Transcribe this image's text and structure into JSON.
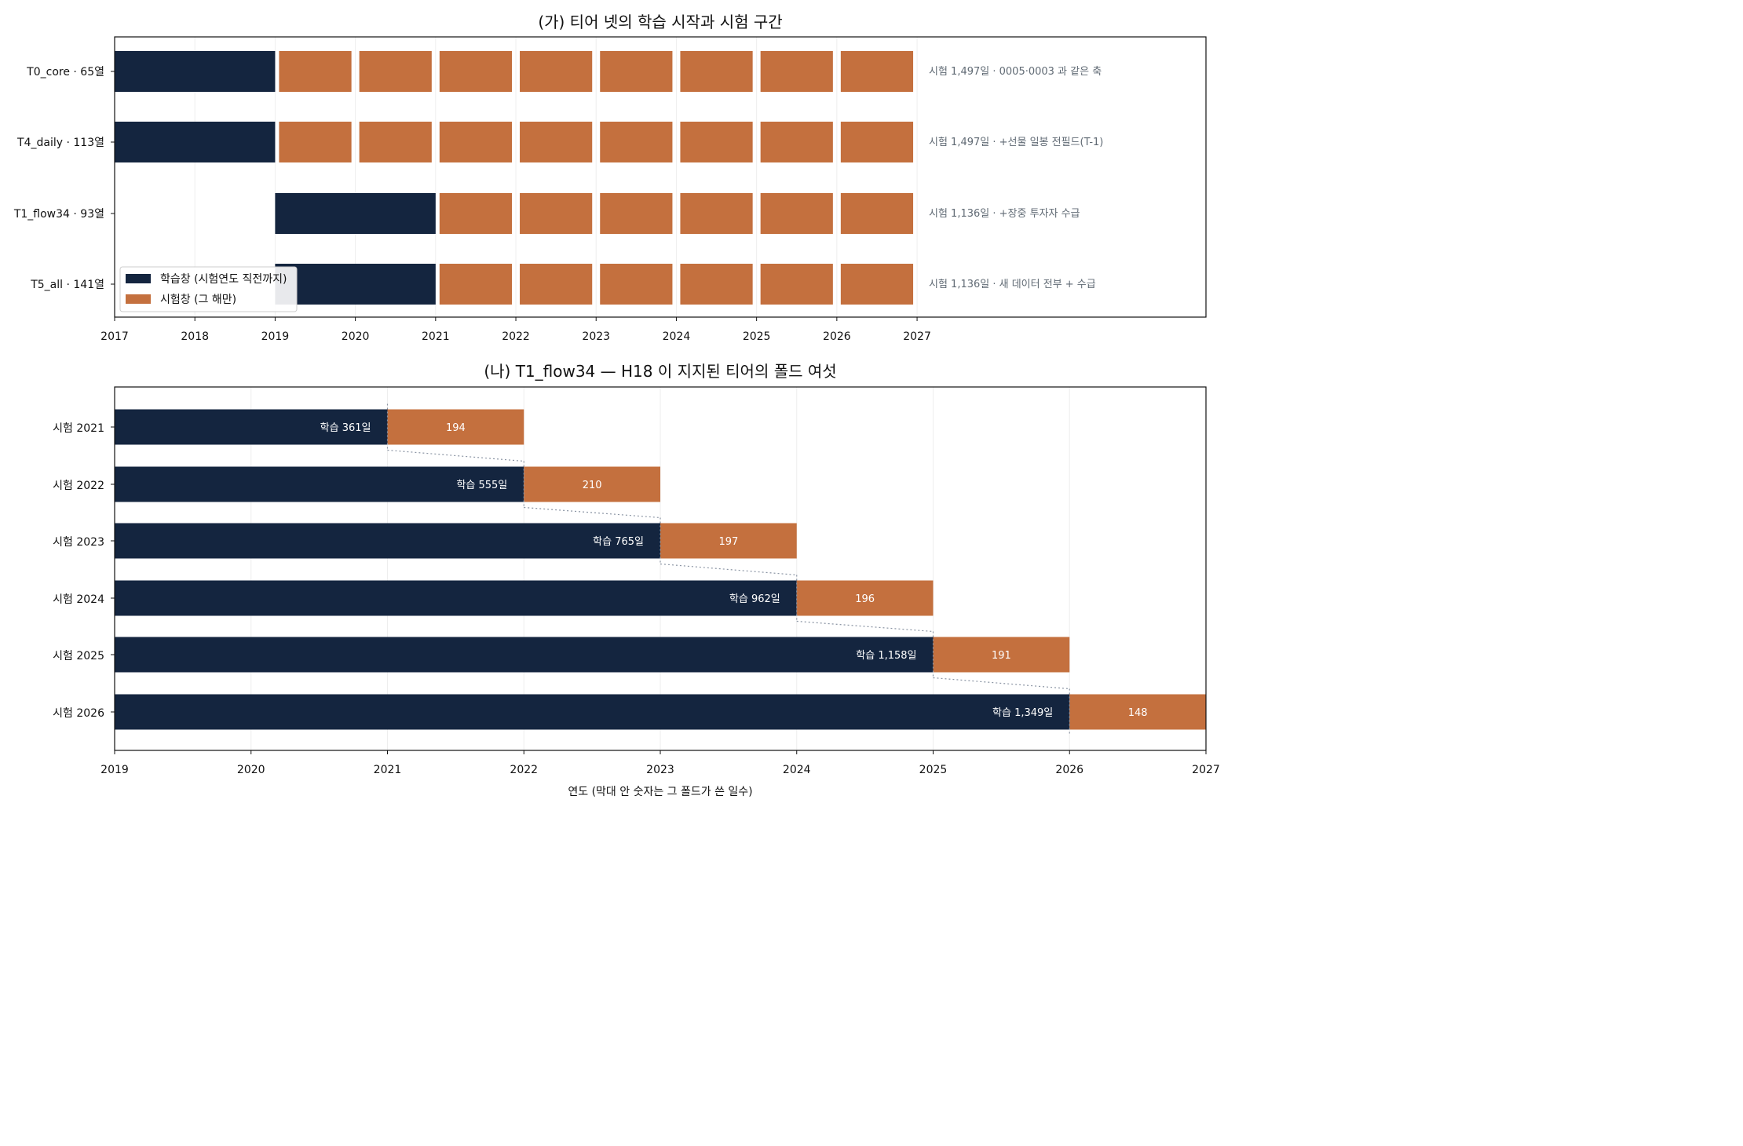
{
  "colors": {
    "train": "#14253f",
    "test": "#c4703e",
    "connector": "#8a94a3",
    "grid": "#eeeeee"
  },
  "chart_data": [
    {
      "type": "bar",
      "orientation": "horizontal-stacked",
      "title": "(가) 티어 넷의 학습 시작과 시험 구간",
      "xlim": [
        2017,
        2030.6
      ],
      "x_ticks": [
        2017,
        2018,
        2019,
        2020,
        2021,
        2022,
        2023,
        2024,
        2025,
        2026,
        2027
      ],
      "grid": true,
      "legend": {
        "placement": "lower-left",
        "entries": [
          {
            "label": "학습창 (시험연도 직전까지)",
            "color_key": "train"
          },
          {
            "label": "시험창 (그 해만)",
            "color_key": "test"
          }
        ]
      },
      "tiers": [
        {
          "label": "T0_core · 65열",
          "train": [
            2017,
            2019
          ],
          "test_years": [
            2019,
            2020,
            2021,
            2022,
            2023,
            2024,
            2025,
            2026
          ],
          "note": "시험 1,497일 · 0005·0003 과 같은 축"
        },
        {
          "label": "T4_daily · 113열",
          "train": [
            2017,
            2019
          ],
          "test_years": [
            2019,
            2020,
            2021,
            2022,
            2023,
            2024,
            2025,
            2026
          ],
          "note": "시험 1,497일 · +선물 일봉 전필드(T-1)"
        },
        {
          "label": "T1_flow34 · 93열",
          "train": [
            2019,
            2021
          ],
          "test_years": [
            2021,
            2022,
            2023,
            2024,
            2025,
            2026
          ],
          "note": "시험 1,136일 · +장중 투자자 수급"
        },
        {
          "label": "T5_all · 141열",
          "train": [
            2019,
            2021
          ],
          "test_years": [
            2021,
            2022,
            2023,
            2024,
            2025,
            2026
          ],
          "note": "시험 1,136일 · 새 데이터 전부 + 수급"
        }
      ]
    },
    {
      "type": "bar",
      "orientation": "horizontal-stacked",
      "title": "(나) T1_flow34 — H18 이 지지된 티어의 폴드 여섯",
      "xlabel": "연도 (막대 안 숫자는 그 폴드가 쓴 일수)",
      "xlim": [
        2019,
        2027
      ],
      "x_ticks": [
        2019,
        2020,
        2021,
        2022,
        2023,
        2024,
        2025,
        2026,
        2027
      ],
      "grid": true,
      "folds": [
        {
          "label": "시험 2021",
          "train_start": 2019,
          "test_start": 2021,
          "test_end": 2022,
          "train_label": "학습 361일",
          "test_label": "194"
        },
        {
          "label": "시험 2022",
          "train_start": 2019,
          "test_start": 2022,
          "test_end": 2023,
          "train_label": "학습 555일",
          "test_label": "210"
        },
        {
          "label": "시험 2023",
          "train_start": 2019,
          "test_start": 2023,
          "test_end": 2024,
          "train_label": "학습 765일",
          "test_label": "197"
        },
        {
          "label": "시험 2024",
          "train_start": 2019,
          "test_start": 2024,
          "test_end": 2025,
          "train_label": "학습 962일",
          "test_label": "196"
        },
        {
          "label": "시험 2025",
          "train_start": 2019,
          "test_start": 2025,
          "test_end": 2026,
          "train_label": "학습 1,158일",
          "test_label": "191"
        },
        {
          "label": "시험 2026",
          "train_start": 2019,
          "test_start": 2026,
          "test_end": 2027,
          "train_label": "학습 1,349일",
          "test_label": "148"
        }
      ]
    }
  ]
}
